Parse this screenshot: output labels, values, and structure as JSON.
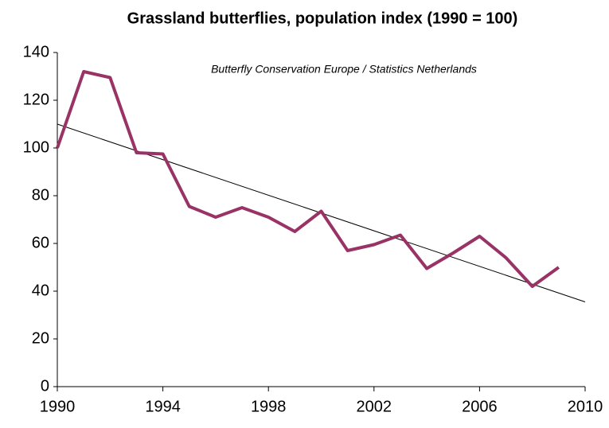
{
  "chart_data": {
    "type": "line",
    "title": "Grassland butterflies, population index (1990 = 100)",
    "annotation": "Butterfly Conservation Europe / Statistics Netherlands",
    "x": [
      1990,
      1991,
      1992,
      1993,
      1994,
      1995,
      1996,
      1997,
      1998,
      1999,
      2000,
      2001,
      2002,
      2003,
      2004,
      2005,
      2006,
      2007,
      2008,
      2009
    ],
    "series": [
      {
        "color": "#993366",
        "values": [
          100,
          132,
          129.5,
          98,
          97.5,
          75.5,
          71,
          75,
          71,
          65,
          73.5,
          57,
          59.5,
          63.5,
          49.5,
          56,
          63,
          54,
          42,
          50
        ]
      }
    ],
    "trend": {
      "color": "#000000",
      "x": [
        1990,
        2010
      ],
      "values": [
        110,
        35.5
      ]
    },
    "xlim": [
      1990,
      2010
    ],
    "xticks": [
      1990,
      1994,
      1998,
      2002,
      2006,
      2010
    ],
    "ylim": [
      0,
      140
    ],
    "yticks": [
      0,
      20,
      40,
      60,
      80,
      100,
      120,
      140
    ],
    "grid": false
  }
}
